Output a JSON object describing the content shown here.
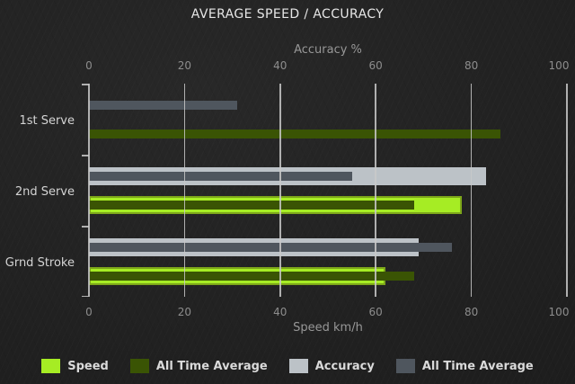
{
  "chart_data": {
    "type": "bar",
    "orientation": "horizontal",
    "title": "AVERAGE SPEED / ACCURACY",
    "categories": [
      "1st Serve",
      "2nd Serve",
      "Grnd Stroke"
    ],
    "top_axis": {
      "label": "Accuracy %",
      "ticks": [
        0,
        20,
        40,
        60,
        80,
        100
      ],
      "range": [
        0,
        100
      ]
    },
    "bottom_axis": {
      "label": "Speed km/h",
      "ticks": [
        0,
        20,
        40,
        60,
        80,
        100
      ],
      "range": [
        0,
        100
      ]
    },
    "grid": true,
    "series": [
      {
        "name": "Speed",
        "axis": "speed",
        "slot": "speed",
        "thickness": "thick",
        "color": "#a6ec24",
        "border_color": "#7da61a",
        "values": [
          null,
          78,
          62
        ]
      },
      {
        "name": "All Time Average",
        "axis": "speed",
        "slot": "speed",
        "thickness": "thin",
        "color": "#3a5404",
        "border_color": "#2c4002",
        "values": [
          86,
          68,
          68
        ]
      },
      {
        "name": "Accuracy",
        "axis": "accuracy",
        "slot": "accuracy",
        "thickness": "thick",
        "color": "#bcc2c7",
        "border_color": "#bcc2c7",
        "values": [
          null,
          83,
          69
        ]
      },
      {
        "name": "All Time Average",
        "axis": "accuracy",
        "slot": "accuracy",
        "thickness": "thin",
        "color": "#4f565e",
        "border_color": "#4f565e",
        "values": [
          31,
          55,
          76
        ]
      }
    ],
    "legend": [
      {
        "label": "Speed",
        "color": "#a6ec24"
      },
      {
        "label": "All Time Average",
        "color": "#3a5404"
      },
      {
        "label": "Accuracy",
        "color": "#bcc2c7"
      },
      {
        "label": "All Time Average",
        "color": "#4f565e"
      }
    ],
    "legend_position": "bottom"
  },
  "colors": {
    "background": "#1f1f1f",
    "gridline": "#c9c9c9",
    "title_text": "#e6e6e6",
    "axis_text": "#8d8d8d",
    "category_text": "#d4d4d4",
    "legend_text": "#dadada"
  }
}
